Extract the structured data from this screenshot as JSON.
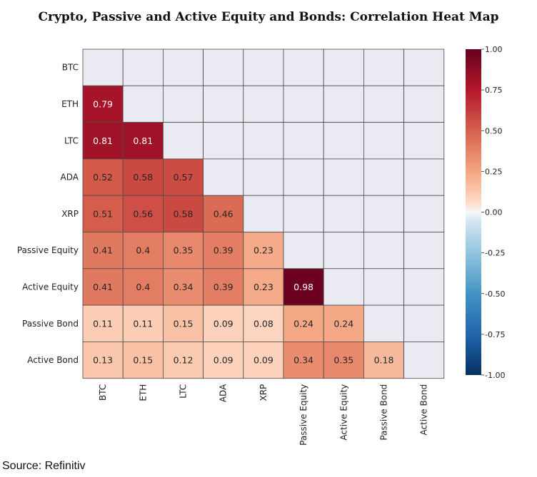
{
  "title": "Crypto, Passive and Active Equity and Bonds: Correlation Heat Map",
  "source": "Source: Refinitiv",
  "chart_data": {
    "type": "heatmap",
    "title": "Crypto, Passive and Active Equity and Bonds: Correlation Heat Map",
    "row_labels": [
      "BTC",
      "ETH",
      "LTC",
      "ADA",
      "XRP",
      "Passive Equity",
      "Active Equity",
      "Passive Bond",
      "Active Bond"
    ],
    "col_labels": [
      "BTC",
      "ETH",
      "LTC",
      "ADA",
      "XRP",
      "Passive Equity",
      "Active Equity",
      "Passive Bond",
      "Active Bond"
    ],
    "values": [
      [
        null,
        null,
        null,
        null,
        null,
        null,
        null,
        null,
        null
      ],
      [
        0.79,
        null,
        null,
        null,
        null,
        null,
        null,
        null,
        null
      ],
      [
        0.81,
        0.81,
        null,
        null,
        null,
        null,
        null,
        null,
        null
      ],
      [
        0.52,
        0.58,
        0.57,
        null,
        null,
        null,
        null,
        null,
        null
      ],
      [
        0.51,
        0.56,
        0.58,
        0.46,
        null,
        null,
        null,
        null,
        null
      ],
      [
        0.41,
        0.4,
        0.35,
        0.39,
        0.23,
        null,
        null,
        null,
        null
      ],
      [
        0.41,
        0.4,
        0.34,
        0.39,
        0.23,
        0.98,
        null,
        null,
        null
      ],
      [
        0.11,
        0.11,
        0.15,
        0.09,
        0.08,
        0.24,
        0.24,
        null,
        null
      ],
      [
        0.13,
        0.15,
        0.12,
        0.09,
        0.09,
        0.34,
        0.35,
        0.18,
        null
      ]
    ],
    "value_labels": [
      [
        null,
        null,
        null,
        null,
        null,
        null,
        null,
        null,
        null
      ],
      [
        "0.79",
        null,
        null,
        null,
        null,
        null,
        null,
        null,
        null
      ],
      [
        "0.81",
        "0.81",
        null,
        null,
        null,
        null,
        null,
        null,
        null
      ],
      [
        "0.52",
        "0.58",
        "0.57",
        null,
        null,
        null,
        null,
        null,
        null
      ],
      [
        "0.51",
        "0.56",
        "0.58",
        "0.46",
        null,
        null,
        null,
        null,
        null
      ],
      [
        "0.41",
        "0.4",
        "0.35",
        "0.39",
        "0.23",
        null,
        null,
        null,
        null
      ],
      [
        "0.41",
        "0.4",
        "0.34",
        "0.39",
        "0.23",
        "0.98",
        null,
        null,
        null
      ],
      [
        "0.11",
        "0.11",
        "0.15",
        "0.09",
        "0.08",
        "0.24",
        "0.24",
        null,
        null
      ],
      [
        "0.13",
        "0.15",
        "0.12",
        "0.09",
        "0.09",
        "0.34",
        "0.35",
        "0.18",
        null
      ]
    ],
    "colorscale": "RdBu_r",
    "vmin": -1.0,
    "vmax": 1.0,
    "masked_upper_triangle": true,
    "colorbar_ticks": [
      "1.00",
      "0.75",
      "0.50",
      "0.25",
      "0.00",
      "-0.25",
      "-0.50",
      "-0.75",
      "-1.00"
    ],
    "colorbar_tick_values": [
      1.0,
      0.75,
      0.5,
      0.25,
      0.0,
      -0.25,
      -0.5,
      -0.75,
      -1.0
    ],
    "grid": true
  }
}
